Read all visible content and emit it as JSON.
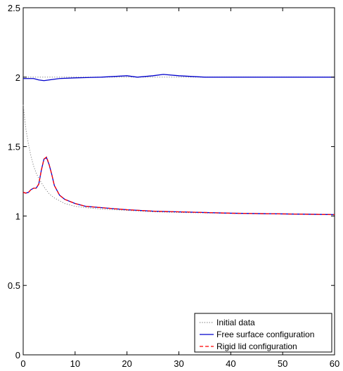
{
  "chart_data": {
    "type": "line",
    "xlim": [
      0,
      60
    ],
    "ylim": [
      0,
      2.5
    ],
    "xticks": [
      0,
      10,
      20,
      30,
      40,
      50,
      60
    ],
    "xtick_labels": [
      "0",
      "10",
      "20",
      "30",
      "40",
      "50",
      "60"
    ],
    "yticks": [
      0,
      0.5,
      1,
      1.5,
      2,
      2.5
    ],
    "ytick_labels": [
      "0",
      "0.5",
      "1",
      "1.5",
      "2",
      "2.5"
    ],
    "grid": false,
    "legend_position": "bottom-right",
    "series": [
      {
        "name": "Initial data",
        "style": "dotted",
        "color": "#7f7f7f",
        "points": [
          [
            0,
            2.0
          ],
          [
            10,
            2.0
          ],
          [
            20,
            2.0
          ],
          [
            30,
            2.0
          ],
          [
            40,
            2.0
          ],
          [
            50,
            2.0
          ],
          [
            60,
            2.0
          ]
        ]
      },
      {
        "name": "Initial data",
        "style": "dotted",
        "color": "#7f7f7f",
        "points": [
          [
            0,
            1.8
          ],
          [
            0.5,
            1.63
          ],
          [
            1,
            1.52
          ],
          [
            1.5,
            1.43
          ],
          [
            2,
            1.36
          ],
          [
            2.5,
            1.31
          ],
          [
            3,
            1.27
          ],
          [
            4,
            1.21
          ],
          [
            5,
            1.16
          ],
          [
            6,
            1.13
          ],
          [
            8,
            1.09
          ],
          [
            10,
            1.07
          ],
          [
            12,
            1.06
          ],
          [
            15,
            1.05
          ],
          [
            20,
            1.04
          ],
          [
            25,
            1.03
          ],
          [
            30,
            1.025
          ],
          [
            40,
            1.02
          ],
          [
            50,
            1.015
          ],
          [
            60,
            1.01
          ]
        ]
      },
      {
        "name": "Free surface configuration",
        "style": "solid",
        "color": "#0000cc",
        "points": [
          [
            0,
            1.99
          ],
          [
            2,
            1.99
          ],
          [
            3,
            1.98
          ],
          [
            4,
            1.975
          ],
          [
            5,
            1.98
          ],
          [
            7,
            1.99
          ],
          [
            10,
            1.995
          ],
          [
            15,
            2.0
          ],
          [
            20,
            2.01
          ],
          [
            22,
            2.0
          ],
          [
            25,
            2.01
          ],
          [
            27,
            2.02
          ],
          [
            30,
            2.01
          ],
          [
            35,
            2.0
          ],
          [
            40,
            2.0
          ],
          [
            50,
            2.0
          ],
          [
            60,
            2.0
          ]
        ]
      },
      {
        "name": "Free surface configuration",
        "style": "solid",
        "color": "#0000cc",
        "points": [
          [
            0,
            1.17
          ],
          [
            0.5,
            1.165
          ],
          [
            1,
            1.17
          ],
          [
            1.5,
            1.19
          ],
          [
            2,
            1.2
          ],
          [
            2.5,
            1.2
          ],
          [
            3,
            1.23
          ],
          [
            3.5,
            1.33
          ],
          [
            4,
            1.41
          ],
          [
            4.5,
            1.42
          ],
          [
            5,
            1.37
          ],
          [
            5.5,
            1.3
          ],
          [
            6,
            1.22
          ],
          [
            7,
            1.15
          ],
          [
            8,
            1.12
          ],
          [
            10,
            1.09
          ],
          [
            12,
            1.07
          ],
          [
            15,
            1.06
          ],
          [
            20,
            1.045
          ],
          [
            25,
            1.035
          ],
          [
            30,
            1.03
          ],
          [
            40,
            1.02
          ],
          [
            50,
            1.015
          ],
          [
            60,
            1.01
          ]
        ]
      },
      {
        "name": "Rigid lid configuration",
        "style": "dashed",
        "color": "#ff0000",
        "points": [
          [
            0,
            1.17
          ],
          [
            0.5,
            1.165
          ],
          [
            1,
            1.17
          ],
          [
            1.5,
            1.19
          ],
          [
            2,
            1.2
          ],
          [
            2.5,
            1.2
          ],
          [
            3,
            1.23
          ],
          [
            3.5,
            1.33
          ],
          [
            4,
            1.41
          ],
          [
            4.5,
            1.425
          ],
          [
            5,
            1.37
          ],
          [
            5.5,
            1.3
          ],
          [
            6,
            1.22
          ],
          [
            7,
            1.15
          ],
          [
            8,
            1.12
          ],
          [
            10,
            1.09
          ],
          [
            12,
            1.07
          ],
          [
            15,
            1.06
          ],
          [
            20,
            1.045
          ],
          [
            25,
            1.035
          ],
          [
            30,
            1.03
          ],
          [
            40,
            1.02
          ],
          [
            50,
            1.015
          ],
          [
            60,
            1.01
          ]
        ]
      }
    ],
    "legend": [
      {
        "label": "Initial data",
        "style": "dotted",
        "color": "#7f7f7f"
      },
      {
        "label": "Free surface configuration",
        "style": "solid",
        "color": "#0000cc"
      },
      {
        "label": "Rigid lid configuration",
        "style": "dashed",
        "color": "#ff0000"
      }
    ]
  }
}
